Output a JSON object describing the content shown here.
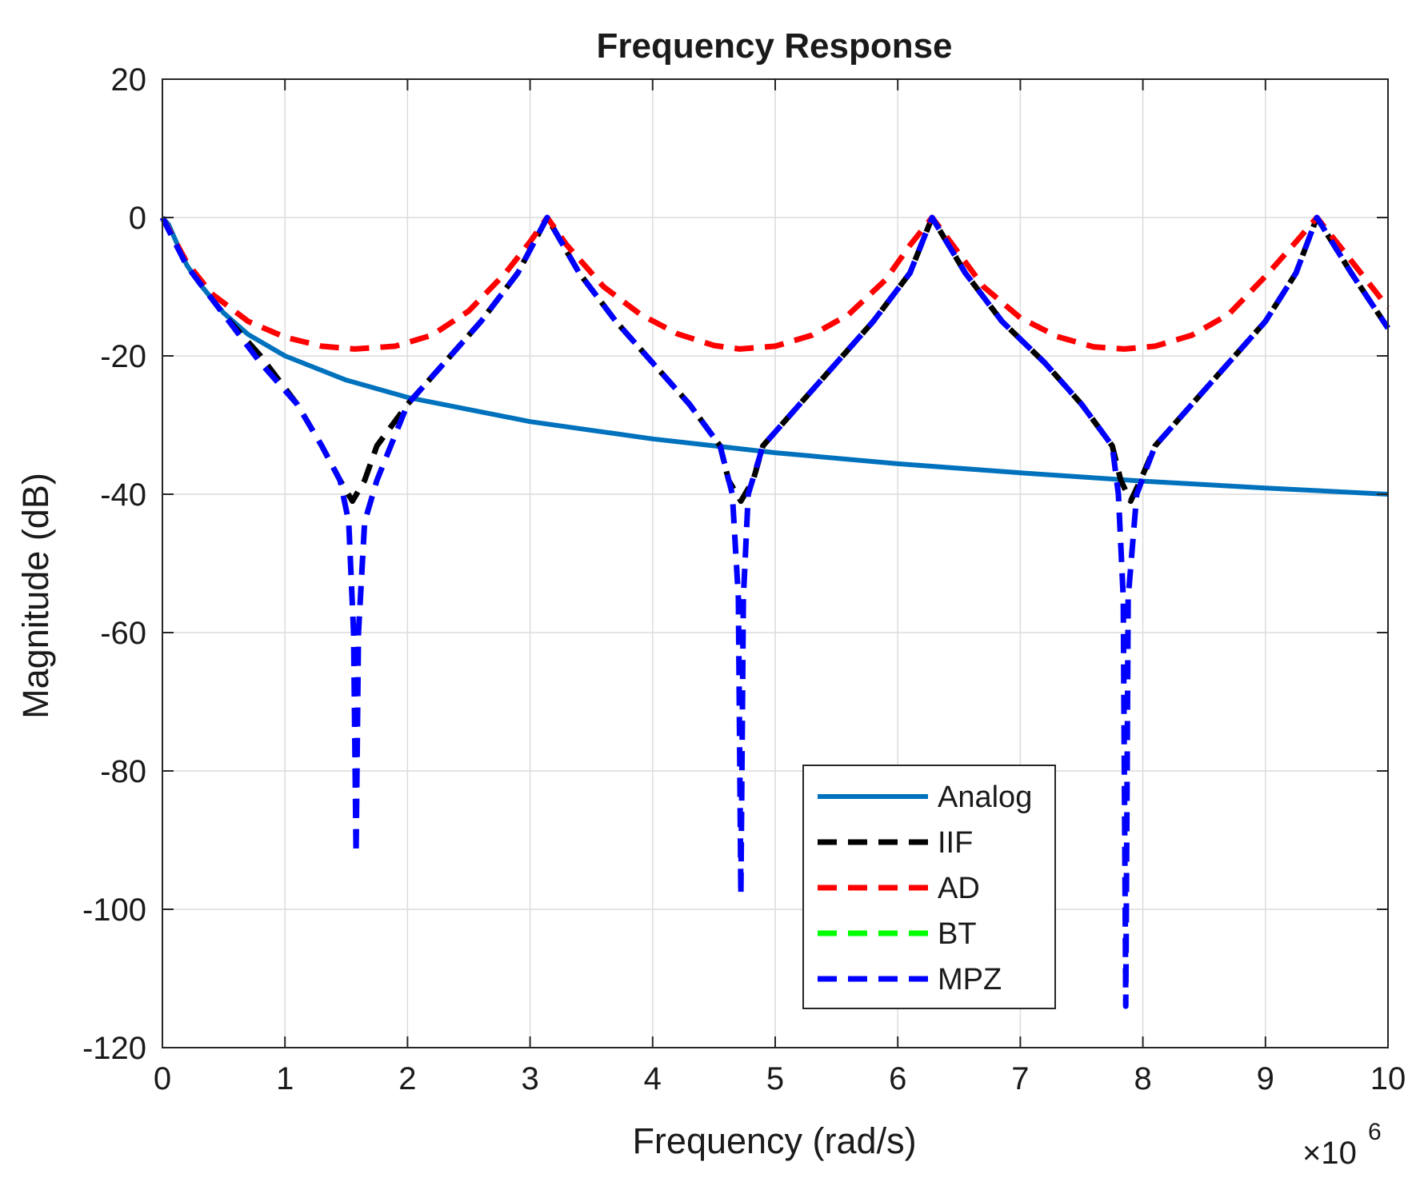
{
  "chart_data": {
    "type": "line",
    "title": "Frequency Response",
    "xlabel": "Frequency (rad/s)",
    "ylabel": "Magnitude (dB)",
    "x_multiplier": "×10",
    "x_multiplier_exponent": "6",
    "xlim": [
      0,
      10
    ],
    "ylim": [
      -120,
      20
    ],
    "xticks": [
      0,
      1,
      2,
      3,
      4,
      5,
      6,
      7,
      8,
      9,
      10
    ],
    "yticks": [
      20,
      0,
      -20,
      -40,
      -60,
      -80,
      -100,
      -120
    ],
    "xtick_labels": [
      "0",
      "1",
      "2",
      "3",
      "4",
      "5",
      "6",
      "7",
      "8",
      "9",
      "10"
    ],
    "ytick_labels": [
      "20",
      "0",
      "-20",
      "-40",
      "-60",
      "-80",
      "-100",
      "-120"
    ],
    "grid": true,
    "legend_position": "bottom-center",
    "series": [
      {
        "name": "Analog",
        "color": "#0072BD",
        "style": "solid",
        "x": [
          0,
          0.05,
          0.1,
          0.2,
          0.3,
          0.5,
          0.7,
          1.0,
          1.5,
          2.0,
          3.0,
          4.0,
          5.0,
          6.0,
          7.0,
          8.0,
          9.0,
          10.0
        ],
        "y": [
          0,
          -1,
          -3,
          -6.9,
          -9.5,
          -13.8,
          -16.9,
          -20,
          -23.5,
          -26,
          -29.5,
          -32,
          -34,
          -35.6,
          -36.9,
          -38.1,
          -39.1,
          -40
        ]
      },
      {
        "name": "IIF",
        "color": "#000000",
        "style": "dashed",
        "x": [
          0,
          0.2,
          0.5,
          0.8,
          1.1,
          1.3,
          1.45,
          1.55,
          1.65,
          1.75,
          2.0,
          2.3,
          2.6,
          2.9,
          3.14,
          3.4,
          3.7,
          4.0,
          4.3,
          4.55,
          4.62,
          4.72,
          4.82,
          4.9,
          5.2,
          5.5,
          5.8,
          6.1,
          6.28,
          6.55,
          6.85,
          7.2,
          7.5,
          7.75,
          7.82,
          7.9,
          7.98,
          8.1,
          8.4,
          8.7,
          9.0,
          9.25,
          9.42,
          9.7,
          10.0
        ],
        "y": [
          0,
          -7,
          -14,
          -20,
          -27,
          -33,
          -38,
          -41,
          -38,
          -33,
          -27,
          -21,
          -15,
          -8,
          0,
          -8,
          -15,
          -21,
          -27,
          -33,
          -38,
          -41,
          -38,
          -33,
          -27,
          -21,
          -15,
          -8,
          0,
          -8,
          -15,
          -21,
          -27,
          -33,
          -38,
          -41,
          -38,
          -33,
          -27,
          -21,
          -15,
          -8,
          0,
          -8,
          -16
        ]
      },
      {
        "name": "AD",
        "color": "#FF0000",
        "style": "dashed",
        "x": [
          0,
          0.2,
          0.4,
          0.7,
          1.0,
          1.3,
          1.57,
          1.9,
          2.2,
          2.5,
          2.8,
          3.0,
          3.14,
          3.3,
          3.6,
          3.9,
          4.2,
          4.5,
          4.71,
          5.0,
          5.3,
          5.6,
          5.9,
          6.1,
          6.28,
          6.45,
          6.7,
          7.0,
          7.3,
          7.6,
          7.85,
          8.1,
          8.4,
          8.7,
          9.0,
          9.25,
          9.42,
          9.6,
          10.0
        ],
        "y": [
          0,
          -6.5,
          -11,
          -15,
          -17.3,
          -18.6,
          -19,
          -18.6,
          -17,
          -13.5,
          -8,
          -3.5,
          0,
          -4,
          -10,
          -14,
          -16.8,
          -18.5,
          -19,
          -18.6,
          -17,
          -14,
          -9,
          -4,
          0,
          -4,
          -10,
          -14.5,
          -17.2,
          -18.7,
          -19,
          -18.6,
          -17,
          -14,
          -8.5,
          -3.5,
          0,
          -4,
          -13
        ]
      },
      {
        "name": "BT",
        "color": "#00FF00",
        "style": "dashed",
        "x": [],
        "y": []
      },
      {
        "name": "MPZ",
        "color": "#0000FF",
        "style": "dashed",
        "x": [
          0,
          0.2,
          0.5,
          0.8,
          1.1,
          1.3,
          1.45,
          1.52,
          1.56,
          1.58,
          1.6,
          1.65,
          1.75,
          2.0,
          2.3,
          2.6,
          2.9,
          3.14,
          3.4,
          3.7,
          4.0,
          4.3,
          4.55,
          4.65,
          4.7,
          4.72,
          4.74,
          4.78,
          4.9,
          5.2,
          5.5,
          5.8,
          6.1,
          6.28,
          6.55,
          6.85,
          7.2,
          7.5,
          7.75,
          7.8,
          7.84,
          7.86,
          7.88,
          7.95,
          8.1,
          8.4,
          8.7,
          9.0,
          9.25,
          9.42,
          9.7,
          10.0
        ],
        "y": [
          0,
          -7,
          -14,
          -21,
          -27,
          -33,
          -38,
          -44,
          -60,
          -92,
          -60,
          -44,
          -38,
          -27,
          -21,
          -15,
          -8,
          0,
          -8,
          -15,
          -21,
          -27,
          -33,
          -40,
          -55,
          -98,
          -55,
          -40,
          -33,
          -27,
          -21,
          -15,
          -8,
          0,
          -8,
          -15,
          -21,
          -27,
          -33,
          -40,
          -55,
          -114,
          -55,
          -40,
          -33,
          -27,
          -21,
          -15,
          -8,
          0,
          -8,
          -16
        ]
      }
    ]
  }
}
